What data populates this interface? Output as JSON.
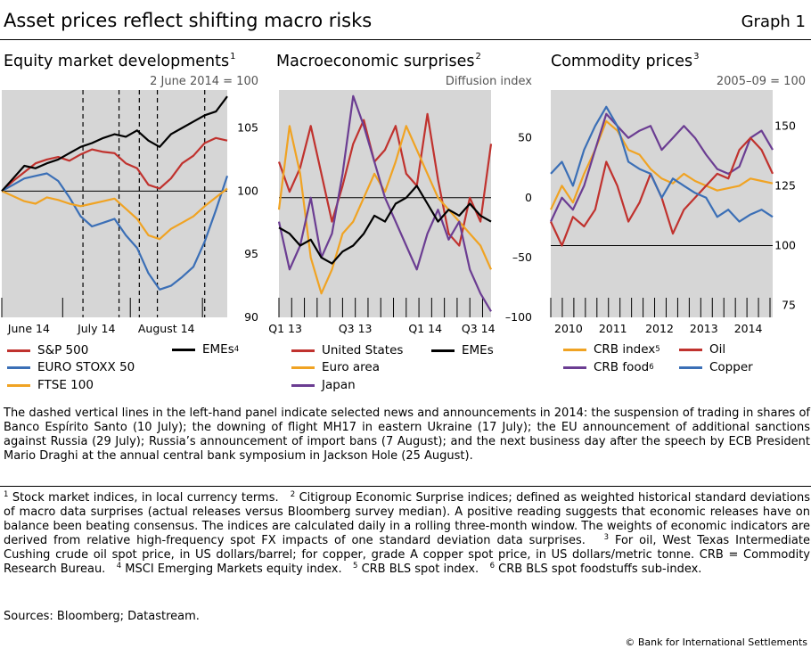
{
  "header": {
    "title": "Asset prices reflect shifting macro risks",
    "graph_label": "Graph 1"
  },
  "chart_data": [
    {
      "type": "line",
      "title": "Equity market developments",
      "title_note": "1",
      "unit_label": "2 June 2014 = 100",
      "ylim": [
        90,
        108
      ],
      "yticks": [
        90,
        95,
        100,
        105
      ],
      "yticks_labels": [
        "90",
        "95",
        "100",
        "105"
      ],
      "ref_line": 100,
      "x_domain": [
        0,
        100
      ],
      "xticks": [
        {
          "label": "June 14",
          "at": 12
        },
        {
          "label": "July 14",
          "at": 42
        },
        {
          "label": "August 14",
          "at": 73
        }
      ],
      "month_boundaries": [
        0,
        27,
        57,
        89
      ],
      "event_lines": [
        36,
        52,
        61,
        69,
        90
      ],
      "series": [
        {
          "name": "S&P 500",
          "sup": "",
          "color": "#c0322e",
          "x": [
            0,
            5,
            10,
            15,
            20,
            25,
            30,
            35,
            40,
            45,
            50,
            55,
            60,
            65,
            70,
            75,
            80,
            85,
            90,
            95,
            100
          ],
          "values": [
            100,
            100.8,
            101.5,
            102.2,
            102.5,
            102.7,
            102.4,
            102.9,
            103.3,
            103.1,
            103,
            102.2,
            101.8,
            100.5,
            100.2,
            101,
            102.2,
            102.8,
            103.8,
            104.2,
            104
          ]
        },
        {
          "name": "EURO STOXX 50",
          "sup": "",
          "color": "#3b6fb6",
          "x": [
            0,
            5,
            10,
            15,
            20,
            25,
            30,
            35,
            40,
            45,
            50,
            55,
            60,
            65,
            70,
            75,
            80,
            85,
            90,
            95,
            100
          ],
          "values": [
            100,
            100.5,
            101,
            101.2,
            101.4,
            100.8,
            99.5,
            98,
            97.2,
            97.5,
            97.8,
            96.5,
            95.5,
            93.5,
            92.2,
            92.5,
            93.2,
            94,
            96,
            98.5,
            101.2
          ]
        },
        {
          "name": "FTSE 100",
          "sup": "",
          "color": "#f0a323",
          "x": [
            0,
            5,
            10,
            15,
            20,
            25,
            30,
            35,
            40,
            45,
            50,
            55,
            60,
            65,
            70,
            75,
            80,
            85,
            90,
            95,
            100
          ],
          "values": [
            100,
            99.6,
            99.2,
            99,
            99.5,
            99.3,
            99,
            98.8,
            99,
            99.2,
            99.4,
            98.6,
            97.8,
            96.5,
            96.2,
            97,
            97.5,
            98,
            98.8,
            99.5,
            100.2
          ]
        },
        {
          "name": "EMEs",
          "sup": "4",
          "color": "#000000",
          "x": [
            0,
            5,
            10,
            15,
            20,
            25,
            30,
            35,
            40,
            45,
            50,
            55,
            60,
            65,
            70,
            75,
            80,
            85,
            90,
            95,
            100
          ],
          "values": [
            100,
            101,
            102,
            101.8,
            102.2,
            102.5,
            103,
            103.5,
            103.8,
            104.2,
            104.5,
            104.3,
            104.8,
            104,
            103.5,
            104.5,
            105,
            105.5,
            106,
            106.3,
            107.5
          ]
        }
      ]
    },
    {
      "type": "line",
      "title": "Macroeconomic surprises",
      "title_note": "2",
      "unit_label": "Diffusion index",
      "ylim": [
        -100,
        90
      ],
      "yticks": [
        -100,
        -50,
        0,
        50
      ],
      "yticks_labels": [
        "–100",
        "–50",
        "0",
        "50"
      ],
      "ref_line": 0,
      "x_domain": [
        0,
        100
      ],
      "xticks": [
        {
          "label": "Q1 13",
          "at": 3
        },
        {
          "label": "Q3 13",
          "at": 36
        },
        {
          "label": "Q1 14",
          "at": 69
        },
        {
          "label": "Q3 14",
          "at": 94
        }
      ],
      "month_boundaries": [
        0,
        6,
        12,
        18,
        24,
        30,
        36,
        42,
        48,
        54,
        60,
        66,
        72,
        78,
        84,
        90,
        96
      ],
      "event_lines": [],
      "series": [
        {
          "name": "United States",
          "sup": "",
          "color": "#c0322e",
          "x": [
            0,
            5,
            10,
            15,
            20,
            25,
            30,
            35,
            40,
            45,
            50,
            55,
            60,
            65,
            70,
            75,
            80,
            85,
            90,
            95,
            100
          ],
          "values": [
            30,
            5,
            25,
            60,
            20,
            -20,
            10,
            45,
            65,
            30,
            40,
            60,
            20,
            10,
            70,
            15,
            -30,
            -40,
            0,
            -20,
            45
          ]
        },
        {
          "name": "Euro area",
          "sup": "",
          "color": "#f0a323",
          "x": [
            0,
            5,
            10,
            15,
            20,
            25,
            30,
            35,
            40,
            45,
            50,
            55,
            60,
            65,
            70,
            75,
            80,
            85,
            90,
            95,
            100
          ],
          "values": [
            -10,
            60,
            20,
            -50,
            -80,
            -60,
            -30,
            -20,
            0,
            20,
            5,
            30,
            60,
            40,
            20,
            0,
            -10,
            -20,
            -30,
            -40,
            -60
          ]
        },
        {
          "name": "Japan",
          "sup": "",
          "color": "#6b3d92",
          "x": [
            0,
            5,
            10,
            15,
            20,
            25,
            30,
            35,
            40,
            45,
            50,
            55,
            60,
            65,
            70,
            75,
            80,
            85,
            90,
            95,
            100
          ],
          "values": [
            -20,
            -60,
            -40,
            0,
            -50,
            -30,
            20,
            85,
            60,
            30,
            0,
            -20,
            -40,
            -60,
            -30,
            -10,
            -35,
            -20,
            -60,
            -80,
            -95
          ]
        },
        {
          "name": "EMEs",
          "sup": "",
          "color": "#000000",
          "x": [
            0,
            5,
            10,
            15,
            20,
            25,
            30,
            35,
            40,
            45,
            50,
            55,
            60,
            65,
            70,
            75,
            80,
            85,
            90,
            95,
            100
          ],
          "values": [
            -25,
            -30,
            -40,
            -35,
            -50,
            -55,
            -45,
            -40,
            -30,
            -15,
            -20,
            -5,
            0,
            10,
            -5,
            -20,
            -10,
            -15,
            -5,
            -15,
            -20
          ]
        }
      ]
    },
    {
      "type": "line",
      "title": "Commodity prices",
      "title_note": "3",
      "unit_label": "2005–09 = 100",
      "ylim": [
        70,
        165
      ],
      "yticks": [
        75,
        100,
        125,
        150
      ],
      "yticks_labels": [
        "75",
        "100",
        "125",
        "150"
      ],
      "ref_line": 100,
      "x_domain": [
        0,
        100
      ],
      "xticks": [
        {
          "label": "2010",
          "at": 8
        },
        {
          "label": "2011",
          "at": 28
        },
        {
          "label": "2012",
          "at": 49
        },
        {
          "label": "2013",
          "at": 69
        },
        {
          "label": "2014",
          "at": 89
        }
      ],
      "month_boundaries": [
        0,
        5.2,
        10.4,
        15.6,
        20.8,
        26,
        31.2,
        36.4,
        41.6,
        46.8,
        52,
        57.2,
        62.4,
        67.6,
        72.8,
        78,
        83.2,
        88.4,
        93.6,
        98.8
      ],
      "event_lines": [],
      "series": [
        {
          "name": "CRB index",
          "sup": "5",
          "color": "#f0a323",
          "x": [
            0,
            5,
            10,
            15,
            20,
            25,
            30,
            35,
            40,
            45,
            50,
            55,
            60,
            65,
            70,
            75,
            80,
            85,
            90,
            95,
            100
          ],
          "values": [
            115,
            125,
            118,
            130,
            140,
            152,
            148,
            140,
            138,
            132,
            128,
            126,
            130,
            127,
            125,
            123,
            124,
            125,
            128,
            127,
            126
          ]
        },
        {
          "name": "CRB food",
          "sup": "6",
          "color": "#6b3d92",
          "x": [
            0,
            5,
            10,
            15,
            20,
            25,
            30,
            35,
            40,
            45,
            50,
            55,
            60,
            65,
            70,
            75,
            80,
            85,
            90,
            95,
            100
          ],
          "values": [
            110,
            120,
            115,
            125,
            140,
            155,
            150,
            145,
            148,
            150,
            140,
            145,
            150,
            145,
            138,
            132,
            130,
            133,
            145,
            148,
            140
          ]
        },
        {
          "name": "Oil",
          "sup": "",
          "color": "#c0322e",
          "x": [
            0,
            5,
            10,
            15,
            20,
            25,
            30,
            35,
            40,
            45,
            50,
            55,
            60,
            65,
            70,
            75,
            80,
            85,
            90,
            95,
            100
          ],
          "values": [
            110,
            100,
            112,
            108,
            115,
            135,
            125,
            110,
            118,
            130,
            120,
            105,
            115,
            120,
            125,
            130,
            128,
            140,
            145,
            140,
            130
          ]
        },
        {
          "name": "Copper",
          "sup": "",
          "color": "#3b6fb6",
          "x": [
            0,
            5,
            10,
            15,
            20,
            25,
            30,
            35,
            40,
            45,
            50,
            55,
            60,
            65,
            70,
            75,
            80,
            85,
            90,
            95,
            100
          ],
          "values": [
            130,
            135,
            125,
            140,
            150,
            158,
            150,
            135,
            132,
            130,
            120,
            128,
            125,
            122,
            120,
            112,
            115,
            110,
            113,
            115,
            112
          ]
        }
      ]
    }
  ],
  "notes": {
    "dashed_lines": "The dashed vertical lines in the left-hand panel indicate selected news and announcements in 2014: the suspension of trading in shares of Banco Espírito Santo (10 July); the downing of flight MH17 in eastern Ukraine (17 July); the EU announcement of additional sanctions against Russia (29 July); Russia’s announcement of import bans (7 August); and the next business day after the speech by ECB President Mario Draghi at the annual central bank symposium in Jackson Hole (25 August).",
    "fn1_mark": "1",
    "fn1": " Stock market indices, in local currency terms.",
    "fn2_mark": "2",
    "fn2": " Citigroup Economic Surprise indices; defined as weighted historical standard deviations of macro data surprises (actual releases versus Bloomberg survey median). A positive reading suggests that economic releases have on balance been beating consensus. The indices are calculated daily in a rolling three-month window. The weights of economic indicators are derived from relative high-frequency spot FX impacts of one standard deviation data surprises.",
    "fn3_mark": "3",
    "fn3": " For oil, West Texas Intermediate Cushing crude oil spot price, in US dollars/barrel; for copper, grade A copper spot price, in US dollars/metric tonne. CRB = Commodity Research Bureau.",
    "fn4_mark": "4",
    "fn4": " MSCI Emerging Markets equity index.",
    "fn5_mark": "5",
    "fn5": " CRB BLS spot index.",
    "fn6_mark": "6",
    "fn6": " CRB BLS spot foodstuffs sub-index.",
    "sources": "Sources: Bloomberg; Datastream.",
    "copyright": "© Bank for International Settlements"
  }
}
